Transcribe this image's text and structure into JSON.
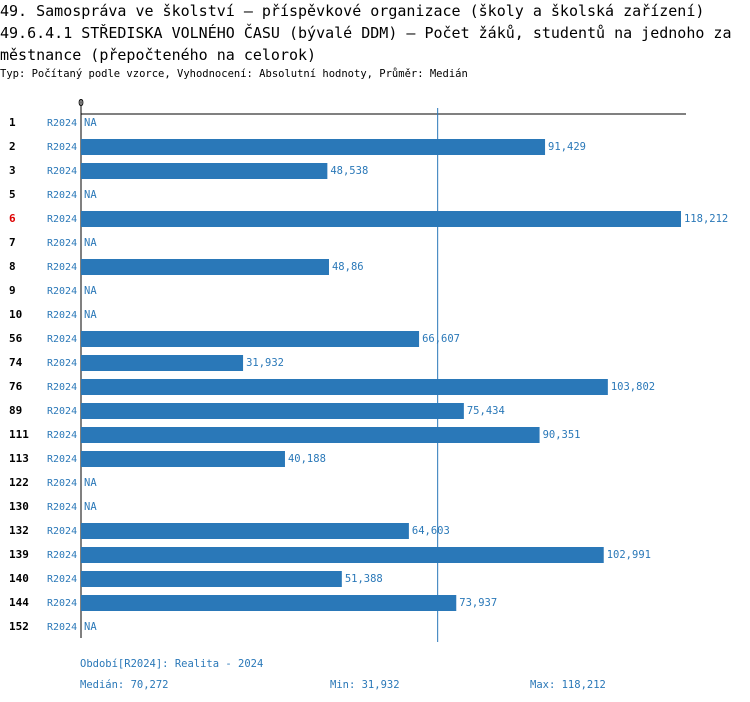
{
  "chart_data": {
    "type": "bar",
    "title": "49. Samospráva ve školství – příspěvkové organizace (školy a školská zařízení)",
    "subtitle": "49.6.4.1 STŘEDISKA VOLNÉHO ČASU (bývalé DDM) – Počet žáků, studentů na jednoho zaměstnance (přepočteného na celorok)",
    "description": "Typ: Počítaný podle vzorce, Vyhodnocení: Absolutní hodnoty, Průměr: Medián",
    "categories": [
      "1",
      "2",
      "3",
      "5",
      "6",
      "7",
      "8",
      "9",
      "10",
      "56",
      "74",
      "76",
      "89",
      "111",
      "113",
      "122",
      "130",
      "132",
      "139",
      "140",
      "144",
      "152"
    ],
    "highlight_category": "6",
    "highlight_color": "#dd0000",
    "series": [
      {
        "name": "R2024",
        "color": "#2a78b8",
        "values": [
          null,
          91.429,
          48.538,
          null,
          118.212,
          null,
          48.86,
          null,
          null,
          66.607,
          31.932,
          103.802,
          75.434,
          90.351,
          40.188,
          null,
          null,
          64.603,
          102.991,
          51.388,
          73.937,
          null
        ],
        "value_labels": [
          "NA",
          "91,429",
          "48,538",
          "NA",
          "118,212",
          "NA",
          "48,86",
          "NA",
          "NA",
          "66,607",
          "31,932",
          "103,802",
          "75,434",
          "90,351",
          "40,188",
          "NA",
          "NA",
          "64,603",
          "102,991",
          "51,388",
          "73,937",
          "NA"
        ]
      }
    ],
    "xlim": [
      0,
      119.2
    ],
    "xticks": [
      0
    ],
    "median": {
      "value": 70.272,
      "label": "Medián: 70,272"
    },
    "period_label": "Období[R2024]: Realita - 2024",
    "min_label": "Min: 31,932",
    "max_label": "Max: 118,212"
  }
}
